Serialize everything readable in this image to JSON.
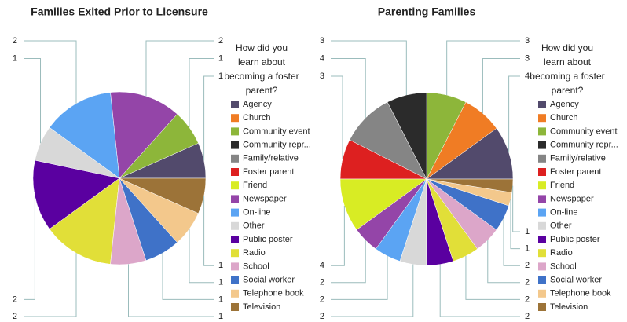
{
  "chart_data": [
    {
      "type": "pie",
      "title": "Families Exited Prior to Licensure",
      "legend_title": [
        "How did you",
        "learn about",
        "becoming a foster",
        "parent?"
      ],
      "categories": [
        "Agency",
        "Church",
        "Community event",
        "Community repr...",
        "Family/relative",
        "Foster parent",
        "Friend",
        "Newspaper",
        "On-line",
        "Other",
        "Public poster",
        "Radio",
        "School",
        "Social worker",
        "Telephone book",
        "Television"
      ],
      "values": [
        1,
        0,
        1,
        0,
        0,
        0,
        0,
        2,
        2,
        1,
        2,
        2,
        1,
        1,
        1,
        1
      ],
      "colors": [
        "#524a6c",
        "#f07c24",
        "#8db63a",
        "#2b2b2b",
        "#858585",
        "#dd2020",
        "#d8ec24",
        "#9445a8",
        "#5ba4f3",
        "#d8d8d8",
        "#5a00a0",
        "#e1df38",
        "#dca6c9",
        "#3f72c8",
        "#f3c88c",
        "#9c7338"
      ]
    },
    {
      "type": "pie",
      "title": "Parenting Families",
      "legend_title": [
        "How did you",
        "learn about",
        "becoming a foster",
        "parent?"
      ],
      "categories": [
        "Agency",
        "Church",
        "Community event",
        "Community repr...",
        "Family/relative",
        "Foster parent",
        "Friend",
        "Newspaper",
        "On-line",
        "Other",
        "Public poster",
        "Radio",
        "School",
        "Social worker",
        "Telephone book",
        "Television"
      ],
      "values": [
        4,
        3,
        3,
        3,
        4,
        3,
        4,
        2,
        2,
        2,
        2,
        2,
        2,
        2,
        1,
        1
      ],
      "colors": [
        "#524a6c",
        "#f07c24",
        "#8db63a",
        "#2b2b2b",
        "#858585",
        "#dd2020",
        "#d8ec24",
        "#9445a8",
        "#5ba4f3",
        "#d8d8d8",
        "#5a00a0",
        "#e1df38",
        "#dca6c9",
        "#3f72c8",
        "#f3c88c",
        "#9c7338"
      ]
    }
  ]
}
